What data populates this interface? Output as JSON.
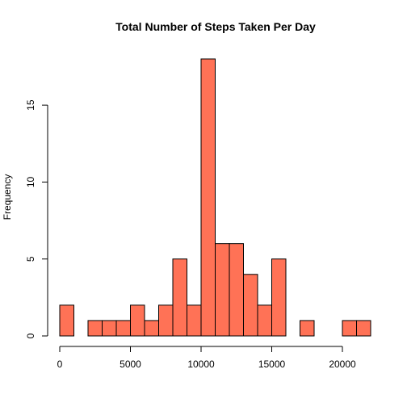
{
  "chart_data": {
    "type": "bar",
    "title": "Total Number of Steps Taken Per Day",
    "xlabel": "",
    "ylabel": "Frequency",
    "bin_edges": [
      0,
      1000,
      2000,
      3000,
      4000,
      5000,
      6000,
      7000,
      8000,
      9000,
      10000,
      11000,
      12000,
      13000,
      14000,
      15000,
      16000,
      17000,
      18000,
      19000,
      20000,
      21000,
      22000
    ],
    "values": [
      2,
      0,
      1,
      1,
      1,
      2,
      1,
      2,
      5,
      2,
      18,
      6,
      6,
      4,
      2,
      5,
      0,
      1,
      0,
      0,
      1,
      1
    ],
    "xlim": [
      0,
      22000
    ],
    "ylim": [
      0,
      18
    ],
    "x_ticks": [
      0,
      5000,
      10000,
      15000,
      20000
    ],
    "y_ticks": [
      0,
      5,
      10,
      15
    ],
    "bar_color": "#ff7256",
    "grid": false
  }
}
